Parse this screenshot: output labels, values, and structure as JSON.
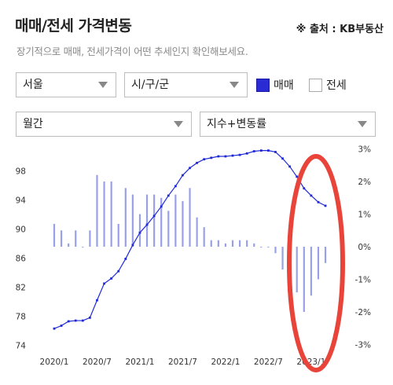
{
  "header": {
    "title": "매매/전세 가격변동",
    "source": "※ 출처 : KB부동산",
    "subtitle": "장기적으로 매매, 전세가격이 어떤 추세인지 확인해보세요."
  },
  "filters": {
    "region": "서울",
    "district": "시/구/군",
    "period": "월간",
    "metric": "지수+변동률",
    "checkbox_sale": "매매",
    "checkbox_jeonse": "전세",
    "sale_checked": true,
    "jeonse_checked": false
  },
  "colors": {
    "line": "#1f2ad6",
    "bar": "#9aa0e8",
    "highlight": "#e8443a"
  },
  "chart_data": {
    "type": "bar+line",
    "x": [
      "2020/1",
      "2020/2",
      "2020/3",
      "2020/4",
      "2020/5",
      "2020/6",
      "2020/7",
      "2020/8",
      "2020/9",
      "2020/10",
      "2020/11",
      "2020/12",
      "2021/1",
      "2021/2",
      "2021/3",
      "2021/4",
      "2021/5",
      "2021/6",
      "2021/7",
      "2021/8",
      "2021/9",
      "2021/10",
      "2021/11",
      "2021/12",
      "2022/1",
      "2022/2",
      "2022/3",
      "2022/4",
      "2022/5",
      "2022/6",
      "2022/7",
      "2022/8",
      "2022/9",
      "2022/10",
      "2022/11",
      "2022/12",
      "2023/1",
      "2023/2",
      "2023/3"
    ],
    "x_tick_labels": [
      "2020/1",
      "2020/7",
      "2021/1",
      "2021/7",
      "2022/1",
      "2022/7",
      "2023/1"
    ],
    "series": [
      {
        "axis": "left",
        "kind": "line",
        "values": [
          76.3,
          76.7,
          77.3,
          77.4,
          77.4,
          77.8,
          80.2,
          82.5,
          83.2,
          84.2,
          85.9,
          87.8,
          89.5,
          90.6,
          91.8,
          93.1,
          94.6,
          95.9,
          97.4,
          98.4,
          99.1,
          99.6,
          99.8,
          100.0,
          100.0,
          100.1,
          100.2,
          100.4,
          100.7,
          100.8,
          100.8,
          100.6,
          99.7,
          98.6,
          97.2,
          95.6,
          94.6,
          93.7,
          93.2
        ]
      },
      {
        "axis": "right",
        "kind": "bar",
        "values": [
          0.7,
          0.5,
          0.1,
          0.5,
          0.0,
          0.5,
          2.2,
          2.0,
          2.0,
          0.7,
          1.8,
          1.6,
          1.0,
          1.6,
          1.6,
          1.5,
          1.1,
          1.6,
          1.4,
          1.8,
          0.9,
          0.6,
          0.2,
          0.2,
          0.1,
          0.2,
          0.2,
          0.2,
          0.1,
          0.0,
          0.0,
          -0.2,
          -0.7,
          -1.4,
          -1.4,
          -2.0,
          -1.5,
          -1.0,
          -0.5
        ]
      }
    ],
    "yleft_ticks": [
      74,
      78,
      82,
      86,
      90,
      94,
      98
    ],
    "yleft_range": [
      74,
      101.2
    ],
    "yright_ticks": [
      "-3%",
      "-2%",
      "-1%",
      "0%",
      "1%",
      "2%",
      "3%"
    ],
    "yright_range": [
      -3,
      3
    ],
    "grid": false
  }
}
